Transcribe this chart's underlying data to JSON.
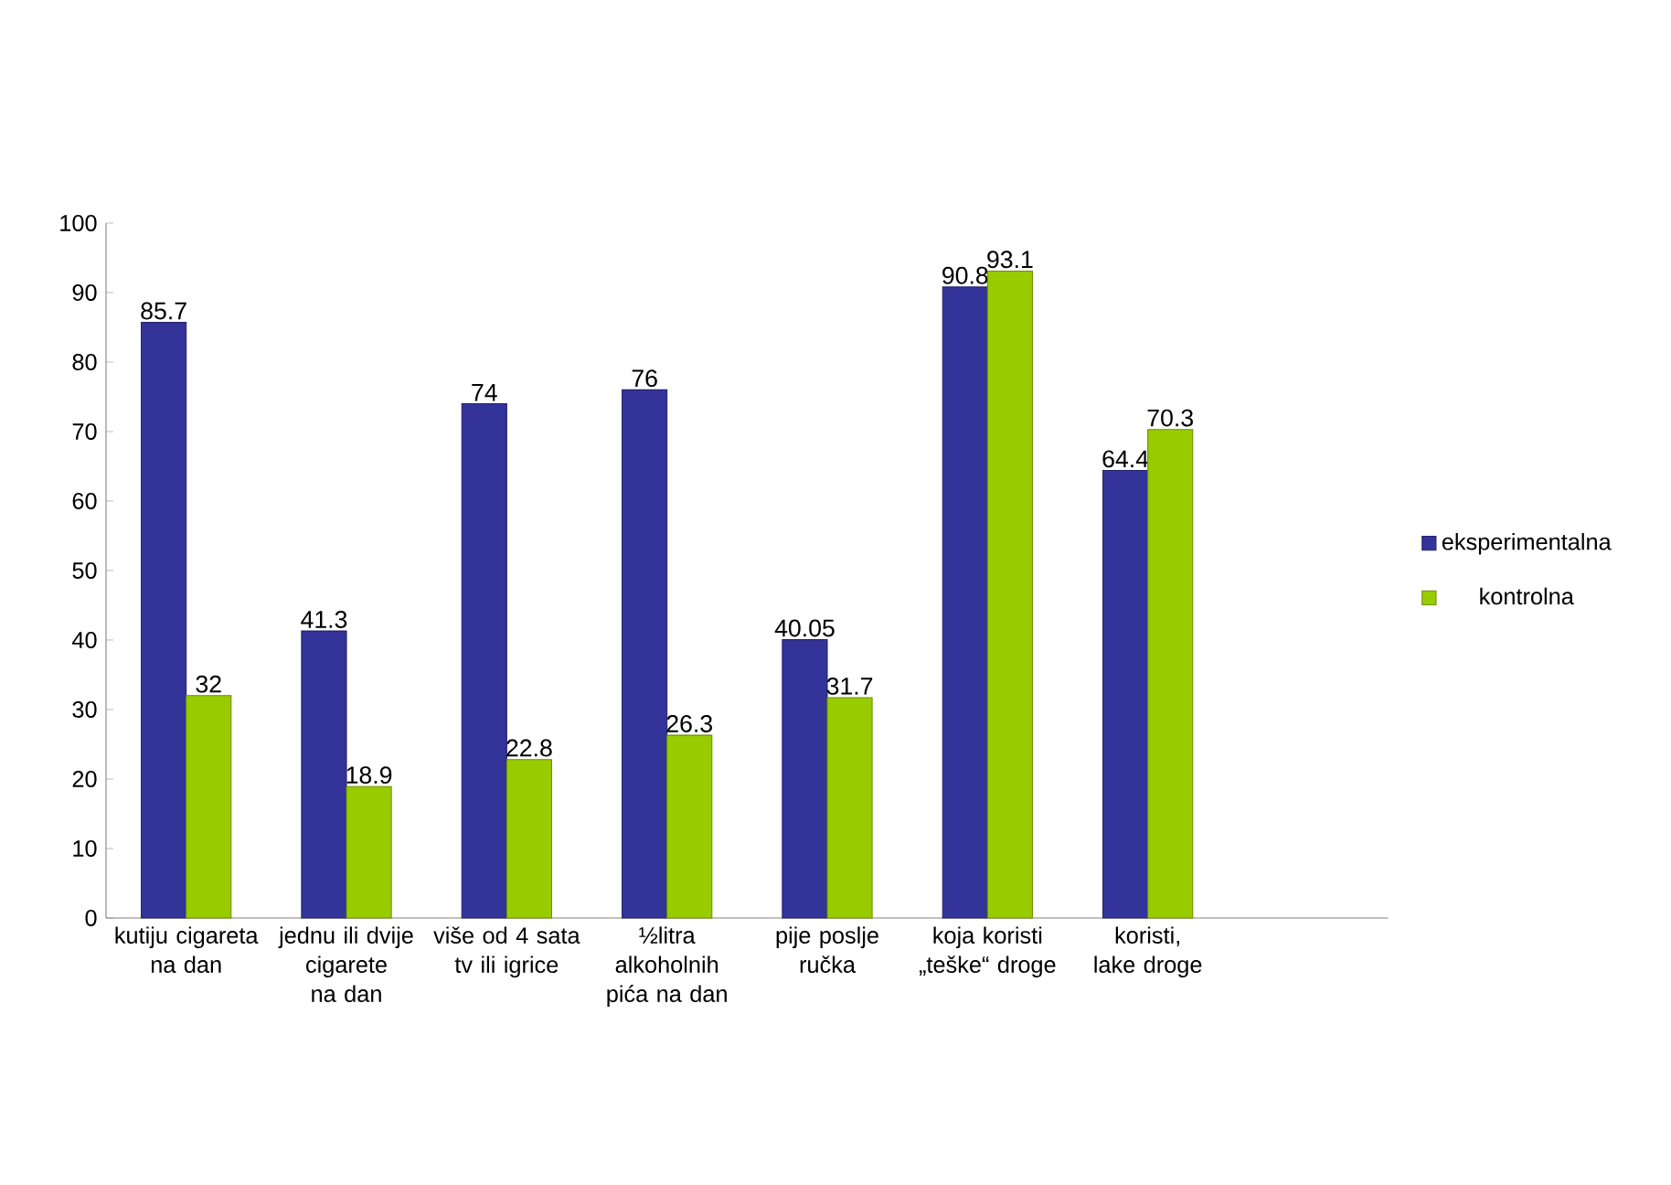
{
  "chart_data": {
    "type": "bar",
    "categories": [
      "kutiju cigareta na dan",
      "jednu ili dvije cigarete na dan",
      "više od 4 sata  tv ili igrice",
      "½litra alkoholnih pića na dan",
      "pije  poslje ručka",
      "koja koristi „teške“ droge",
      "koristi, lake droge"
    ],
    "series": [
      {
        "name": "eksperimentalna",
        "color": "#333399",
        "values": [
          85.7,
          41.3,
          74,
          76,
          40.05,
          90.8,
          64.4
        ]
      },
      {
        "name": "kontrolna",
        "color": "#99cc00",
        "values": [
          32,
          18.9,
          22.8,
          26.3,
          31.7,
          93.1,
          70.3
        ]
      }
    ],
    "ylim": [
      0,
      100
    ],
    "yticks": [
      0,
      10,
      20,
      30,
      40,
      50,
      60,
      70,
      80,
      90,
      100
    ],
    "data_labels": true,
    "legend": "right",
    "grid": false
  }
}
